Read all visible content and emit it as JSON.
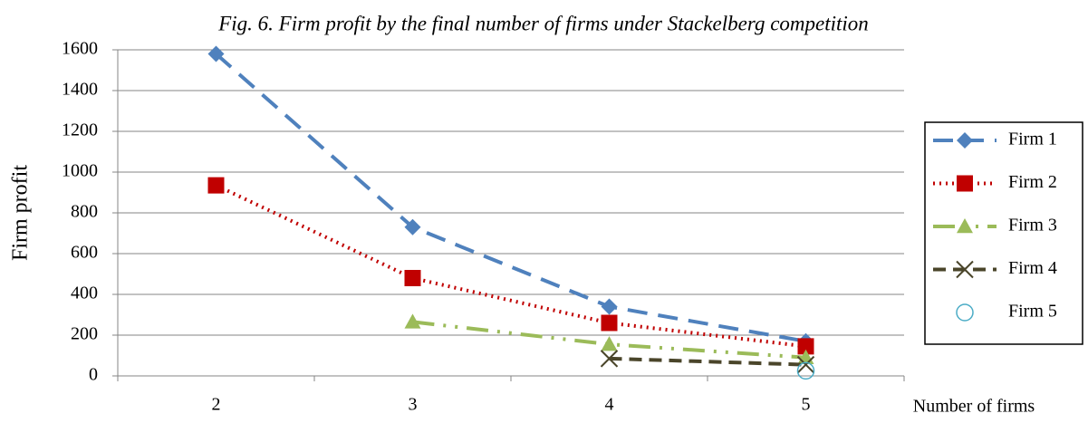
{
  "chart_data": {
    "type": "line",
    "title": "Fig. 6. Firm profit by the final number of firms under Stackelberg competition",
    "x_label": "Number of firms",
    "y_label": "Firm profit",
    "categories": [
      "2",
      "3",
      "4",
      "5"
    ],
    "series": [
      {
        "name": "Firm 1",
        "color": "#4f81bd",
        "marker": "diamond",
        "dash": "22 12",
        "values": [
          1580,
          730,
          340,
          170
        ]
      },
      {
        "name": "Firm 2",
        "color": "#c00000",
        "marker": "square",
        "dash": "2 5",
        "values": [
          935,
          480,
          260,
          145
        ]
      },
      {
        "name": "Firm 3",
        "color": "#9bbb59",
        "marker": "triangle",
        "dash": "24 10 3 10 3 10",
        "values": [
          null,
          265,
          155,
          90
        ]
      },
      {
        "name": "Firm 4",
        "color": "#4a452a",
        "marker": "x",
        "dash": "14 8",
        "values": [
          null,
          null,
          85,
          55
        ]
      },
      {
        "name": "Firm 5",
        "color": "#4bacc6",
        "marker": "circle",
        "dash": "0",
        "values": [
          null,
          null,
          null,
          25
        ]
      }
    ],
    "ylim": [
      0,
      1600
    ],
    "yticks": [
      0,
      200,
      400,
      600,
      800,
      1000,
      1200,
      1400,
      1600
    ],
    "grid": true,
    "legend": "right"
  }
}
